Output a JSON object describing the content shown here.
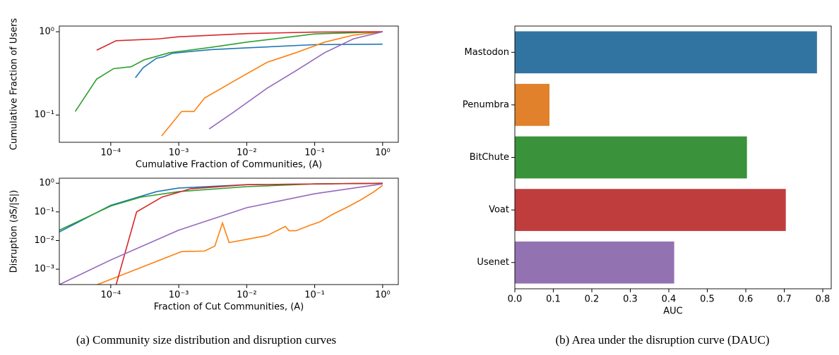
{
  "chart_data": [
    {
      "type": "line",
      "xscale": "log",
      "yscale": "log",
      "xlabel": "Cumulative Fraction of Communities, (A)",
      "ylabel": "Cumulative Fraction of Users",
      "xlim": [
        1.75e-05,
        1.7
      ],
      "ylim": [
        0.047,
        1.17
      ],
      "xticks": [
        {
          "value": 0.0001,
          "label": "10⁻⁴"
        },
        {
          "value": 0.001,
          "label": "10⁻³"
        },
        {
          "value": 0.01,
          "label": "10⁻²"
        },
        {
          "value": 0.1,
          "label": "10⁻¹"
        },
        {
          "value": 1,
          "label": "10⁰"
        }
      ],
      "yticks": [
        {
          "value": 0.1,
          "label": "10⁻¹"
        },
        {
          "value": 1,
          "label": "10⁰"
        }
      ],
      "series": [
        {
          "color": "#1f77b4",
          "x": [
            0.00023,
            0.0003,
            0.00047,
            0.0006,
            0.0008,
            0.0015,
            0.003,
            0.01,
            0.1,
            1
          ],
          "values": [
            0.28,
            0.37,
            0.48,
            0.5,
            0.55,
            0.58,
            0.61,
            0.64,
            0.7,
            0.71
          ]
        },
        {
          "color": "#ff7f0e",
          "x": [
            0.00056,
            0.0011,
            0.00167,
            0.0024,
            0.0062,
            0.02,
            0.053,
            0.14,
            0.37,
            1
          ],
          "values": [
            0.056,
            0.11,
            0.11,
            0.16,
            0.25,
            0.43,
            0.56,
            0.75,
            0.91,
            1
          ]
        },
        {
          "color": "#2ca02c",
          "x": [
            3e-05,
            6.2e-05,
            0.00011,
            0.0002,
            0.00031,
            0.00073,
            0.003,
            0.01,
            0.1,
            1
          ],
          "values": [
            0.11,
            0.27,
            0.36,
            0.38,
            0.46,
            0.56,
            0.65,
            0.75,
            0.94,
            1
          ]
        },
        {
          "color": "#d62728",
          "x": [
            6.2e-05,
            0.00012,
            0.0005,
            0.001,
            0.01,
            0.1,
            1
          ],
          "values": [
            0.6,
            0.78,
            0.82,
            0.87,
            0.95,
            0.99,
            1
          ]
        },
        {
          "color": "#9467bd",
          "x": [
            0.0028,
            0.0062,
            0.02,
            0.053,
            0.14,
            0.37,
            1
          ],
          "values": [
            0.068,
            0.106,
            0.21,
            0.34,
            0.56,
            0.82,
            1
          ]
        }
      ]
    },
    {
      "type": "line",
      "xscale": "log",
      "yscale": "log",
      "xlabel": "Fraction of Cut Communities, (A)",
      "ylabel": "Disruption (∂S/|S|)",
      "xlim": [
        1.75e-05,
        1.7
      ],
      "ylim": [
        0.00029,
        1.5
      ],
      "xticks": [
        {
          "value": 0.0001,
          "label": "10⁻⁴"
        },
        {
          "value": 0.001,
          "label": "10⁻³"
        },
        {
          "value": 0.01,
          "label": "10⁻²"
        },
        {
          "value": 0.1,
          "label": "10⁻¹"
        },
        {
          "value": 1,
          "label": "10⁰"
        }
      ],
      "yticks": [
        {
          "value": 0.001,
          "label": "10⁻³"
        },
        {
          "value": 0.01,
          "label": "10⁻²"
        },
        {
          "value": 0.1,
          "label": "10⁻¹"
        },
        {
          "value": 1,
          "label": "10⁰"
        }
      ],
      "series": [
        {
          "color": "#1f77b4",
          "x": [
            1.75e-05,
            0.0001,
            0.00047,
            0.001,
            0.01,
            1
          ],
          "values": [
            0.02,
            0.17,
            0.51,
            0.68,
            0.89,
            1
          ]
        },
        {
          "color": "#ff7f0e",
          "x": [
            5.2e-05,
            0.0011,
            0.0024,
            0.0034,
            0.0044,
            0.0055,
            0.01,
            0.02,
            0.037,
            0.042,
            0.053,
            0.085,
            0.12,
            0.18,
            0.29,
            0.46,
            0.75,
            1
          ],
          "values": [
            0.00024,
            0.0041,
            0.0043,
            0.0064,
            0.041,
            0.0085,
            0.011,
            0.015,
            0.031,
            0.022,
            0.022,
            0.034,
            0.045,
            0.08,
            0.14,
            0.25,
            0.51,
            0.85
          ]
        },
        {
          "color": "#2ca02c",
          "x": [
            1.75e-05,
            0.0001,
            0.00028,
            0.001,
            0.01,
            0.1,
            1
          ],
          "values": [
            0.023,
            0.16,
            0.33,
            0.51,
            0.76,
            0.95,
            1
          ]
        },
        {
          "color": "#d62728",
          "x": [
            0.00012,
            0.00024,
            0.00057,
            0.0015,
            0.01,
            1
          ],
          "values": [
            0.00029,
            0.1,
            0.33,
            0.64,
            0.89,
            1
          ]
        },
        {
          "color": "#9467bd",
          "x": [
            1.75e-05,
            0.0001,
            0.001,
            0.01,
            0.1,
            1
          ],
          "values": [
            0.00029,
            0.0021,
            0.023,
            0.14,
            0.43,
            0.95
          ]
        }
      ]
    },
    {
      "type": "hbar",
      "xlabel": "AUC",
      "categories": [
        "Mastodon",
        "Penumbra",
        "BitChute",
        "Voat",
        "Usenet"
      ],
      "values": [
        0.785,
        0.09,
        0.603,
        0.704,
        0.414
      ],
      "colors": [
        "#3274a1",
        "#e1812c",
        "#3a923a",
        "#c03d3e",
        "#9372b2"
      ],
      "xlim": [
        0,
        0.822
      ],
      "xticks": [
        {
          "value": 0,
          "label": "0.0"
        },
        0.1,
        0.2,
        0.3,
        0.4,
        0.5,
        0.6,
        0.7,
        0.8
      ]
    }
  ],
  "captions": [
    "(a) Community size distribution and disruption curves",
    "(b) Area under the disruption curve (DAUC)"
  ]
}
